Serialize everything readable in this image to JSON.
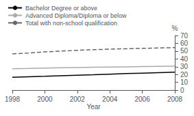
{
  "chart_data": {
    "type": "line",
    "xlabel": "Year",
    "ylabel": "%",
    "x": [
      1998,
      1999,
      2000,
      2001,
      2002,
      2003,
      2004,
      2005,
      2006,
      2007,
      2008
    ],
    "series": [
      {
        "name": "Bachelor Degree or above",
        "color": "#000000",
        "line_style": "solid",
        "values": [
          16.5,
          17.2,
          17.8,
          18.5,
          19.2,
          19.8,
          20.5,
          21.2,
          21.8,
          22.4,
          23.0
        ]
      },
      {
        "name": "Advanced Diploma/Diploma or below",
        "color": "#aaaaaa",
        "line_style": "solid",
        "values": [
          27.5,
          27.8,
          28.3,
          28.7,
          29.0,
          29.3,
          29.6,
          29.9,
          30.2,
          30.5,
          30.7
        ]
      },
      {
        "name": "Total with non-school qualification",
        "color": "#666666",
        "line_style": "dashed",
        "values": [
          46.5,
          47.5,
          49.0,
          50.0,
          51.0,
          51.8,
          52.5,
          53.0,
          53.5,
          54.0,
          54.5
        ]
      }
    ],
    "xlim": [
      1998,
      2008
    ],
    "xticks": [
      1998,
      2000,
      2002,
      2004,
      2006,
      2008
    ],
    "ylim": [
      0,
      70
    ],
    "yticks": [
      0,
      10,
      20,
      30,
      40,
      50,
      60,
      70
    ],
    "grid": false,
    "legend": "upper left"
  }
}
